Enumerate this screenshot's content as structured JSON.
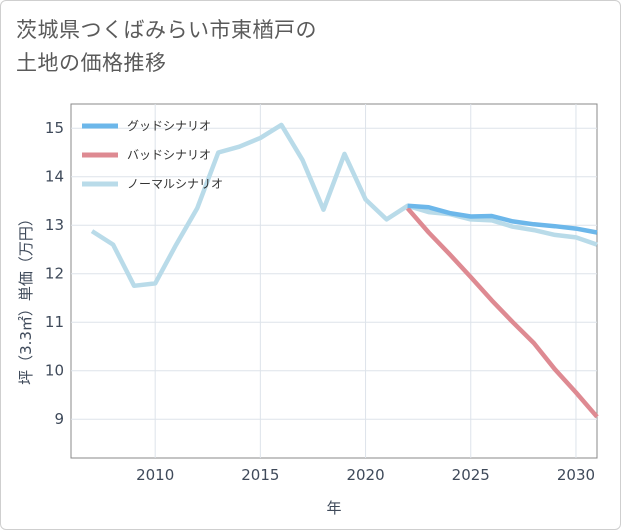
{
  "title": {
    "line1": "茨城県つくばみらい市東楢戸の",
    "line2": "土地の価格推移"
  },
  "chart_data": {
    "type": "line",
    "xlabel": "年",
    "ylabel": "坪（3.3㎡）単価（万円）",
    "xlim": [
      2006,
      2031
    ],
    "ylim": [
      8.2,
      15.5
    ],
    "xticks": [
      2010,
      2015,
      2020,
      2025,
      2030
    ],
    "yticks": [
      9,
      10,
      11,
      12,
      13,
      14,
      15
    ],
    "grid": true,
    "legend_position": "top-left",
    "series": [
      {
        "name": "グッドシナリオ",
        "color": "#6cb7ea",
        "x": [
          2022,
          2023,
          2024,
          2025,
          2026,
          2027,
          2028,
          2029,
          2030,
          2031
        ],
        "values": [
          13.4,
          13.37,
          13.25,
          13.18,
          13.19,
          13.08,
          13.02,
          12.98,
          12.93,
          12.85
        ]
      },
      {
        "name": "バッドシナリオ",
        "color": "#de8a92",
        "x": [
          2022,
          2023,
          2024,
          2025,
          2026,
          2027,
          2028,
          2029,
          2030,
          2031
        ],
        "values": [
          13.35,
          12.85,
          12.4,
          11.93,
          11.45,
          11.0,
          10.57,
          10.03,
          9.55,
          9.05
        ]
      },
      {
        "name": "ノーマルシナリオ",
        "color": "#b9dbe9",
        "x": [
          2007,
          2008,
          2009,
          2010,
          2011,
          2012,
          2013,
          2014,
          2015,
          2016,
          2017,
          2018,
          2019,
          2020,
          2021,
          2022,
          2023,
          2024,
          2025,
          2026,
          2027,
          2028,
          2029,
          2030,
          2031
        ],
        "values": [
          12.88,
          12.6,
          11.75,
          11.8,
          12.6,
          13.35,
          14.5,
          14.62,
          14.8,
          15.07,
          14.35,
          13.32,
          14.47,
          13.53,
          13.12,
          13.4,
          13.27,
          13.23,
          13.12,
          13.1,
          12.97,
          12.9,
          12.8,
          12.75,
          12.6
        ]
      }
    ]
  }
}
